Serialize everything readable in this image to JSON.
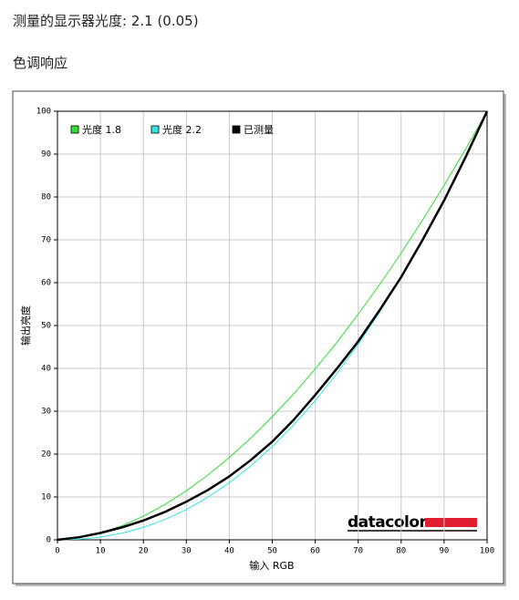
{
  "page_title": "测量的显示器光度:  2.1 (0.05)",
  "section_title": "色调响应",
  "chart_data": {
    "type": "line",
    "xlabel": "输入 RGB",
    "ylabel": "输出亮度",
    "logo": "datacolor",
    "x": [
      0,
      5,
      10,
      15,
      20,
      25,
      30,
      35,
      40,
      45,
      50,
      55,
      60,
      65,
      70,
      75,
      80,
      85,
      90,
      95,
      100
    ],
    "series": [
      {
        "name": "光度 1.8",
        "color": "#33dd33",
        "values": [
          0,
          0.45,
          1.58,
          3.29,
          5.52,
          8.25,
          11.45,
          15.11,
          19.22,
          23.76,
          28.72,
          34.09,
          39.87,
          46.05,
          52.63,
          59.58,
          66.92,
          74.64,
          82.73,
          91.18,
          100
        ]
      },
      {
        "name": "光度 2.2",
        "color": "#33e5e5",
        "values": [
          0,
          0.14,
          0.63,
          1.54,
          2.9,
          4.74,
          7.07,
          9.93,
          13.32,
          17.26,
          21.76,
          26.84,
          32.5,
          38.76,
          45.63,
          53.11,
          61.21,
          69.94,
          79.3,
          89.33,
          100
        ]
      },
      {
        "name": "已测量",
        "color": "#000000",
        "values": [
          0,
          0.6,
          1.6,
          2.9,
          4.5,
          6.5,
          8.9,
          11.6,
          14.8,
          18.6,
          22.9,
          28,
          33.8,
          39.9,
          46.3,
          53.6,
          61.3,
          70,
          79.2,
          89.3,
          100
        ]
      }
    ],
    "xlim": [
      0,
      100
    ],
    "ylim": [
      0,
      100
    ],
    "xticks": [
      0,
      10,
      20,
      30,
      40,
      50,
      60,
      70,
      80,
      90,
      100
    ],
    "yticks": [
      0,
      10,
      20,
      30,
      40,
      50,
      60,
      70,
      80,
      90,
      100
    ],
    "grid": true
  }
}
